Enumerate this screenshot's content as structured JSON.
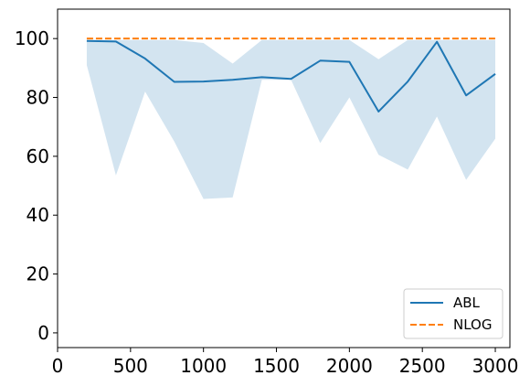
{
  "chart_data": {
    "type": "line",
    "title": "",
    "xlabel": "",
    "ylabel": "",
    "xlim": [
      0,
      3100
    ],
    "ylim": [
      -5,
      110
    ],
    "xticks": [
      0,
      500,
      1000,
      1500,
      2000,
      2500,
      3000
    ],
    "yticks": [
      0,
      20,
      40,
      60,
      80,
      100
    ],
    "xtick_labels": [
      "0",
      "500",
      "1000",
      "1500",
      "2000",
      "2500",
      "3000"
    ],
    "ytick_labels": [
      "0",
      "20",
      "40",
      "60",
      "80",
      "100"
    ],
    "grid": false,
    "legend_position": "lower-right",
    "x": [
      200,
      400,
      600,
      800,
      1000,
      1200,
      1400,
      1600,
      1800,
      2000,
      2200,
      2400,
      2600,
      2800,
      3000
    ],
    "series": [
      {
        "name": "ABL",
        "style": "solid",
        "color": "#1f77b4",
        "values": [
          99.2,
          99.0,
          93.2,
          85.3,
          85.4,
          86.0,
          86.9,
          86.3,
          92.5,
          92.1,
          75.2,
          85.4,
          98.9,
          80.7,
          88.0
        ],
        "band_lower": [
          91.0,
          53.5,
          82.0,
          65.0,
          45.5,
          46.0,
          86.0,
          86.0,
          64.5,
          80.0,
          60.5,
          55.5,
          73.5,
          52.0,
          66.0
        ],
        "band_upper": [
          99.5,
          99.5,
          99.5,
          99.5,
          98.5,
          91.5,
          99.5,
          99.5,
          99.5,
          99.5,
          93.0,
          99.5,
          99.5,
          99.5,
          99.5
        ],
        "band_color": "#aecde3"
      },
      {
        "name": "NLOG",
        "style": "dashed",
        "color": "#ff7f0e",
        "values": [
          100,
          100,
          100,
          100,
          100,
          100,
          100,
          100,
          100,
          100,
          100,
          100,
          100,
          100,
          100
        ]
      }
    ]
  }
}
